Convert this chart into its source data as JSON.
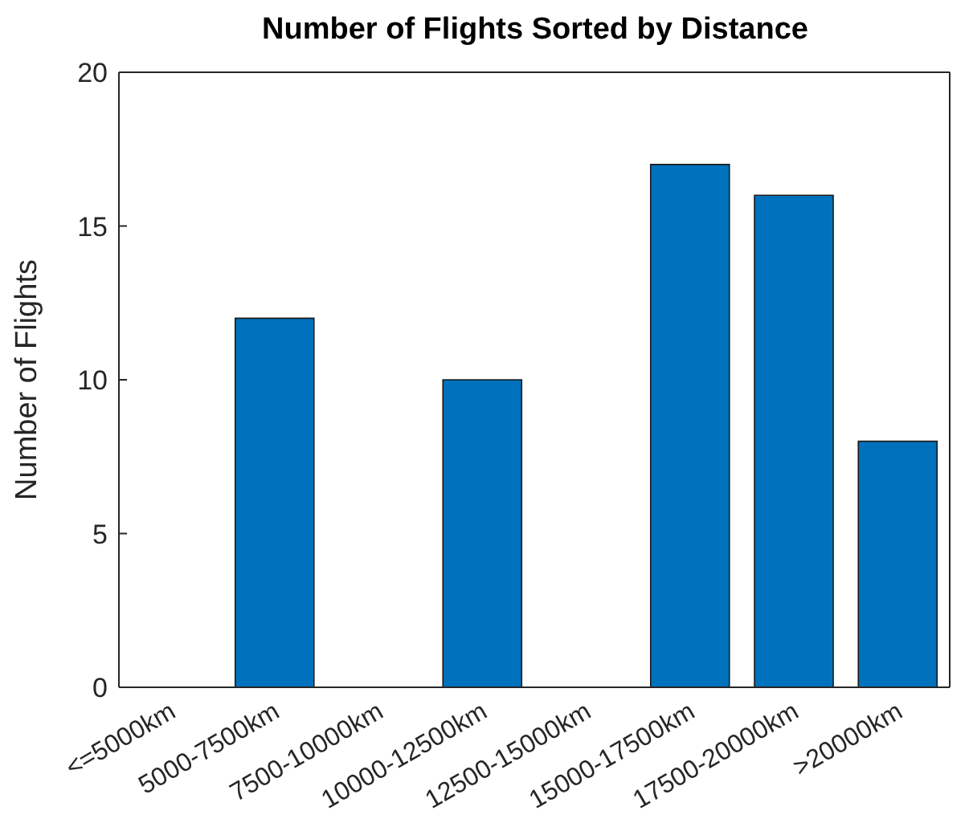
{
  "chart_data": {
    "type": "bar",
    "title": "Number of Flights Sorted by Distance",
    "ylabel": "Number of Flights",
    "categories": [
      "<=5000km",
      "5000-7500km",
      "7500-10000km",
      "10000-12500km",
      "12500-15000km",
      "15000-17500km",
      "17500-20000km",
      ">20000km"
    ],
    "values": [
      0,
      12,
      0,
      10,
      0,
      17,
      16,
      8
    ],
    "color": "#0072bd",
    "ylim": [
      0,
      20
    ],
    "yticks": [
      0,
      5,
      10,
      15,
      20
    ],
    "grid": false
  }
}
